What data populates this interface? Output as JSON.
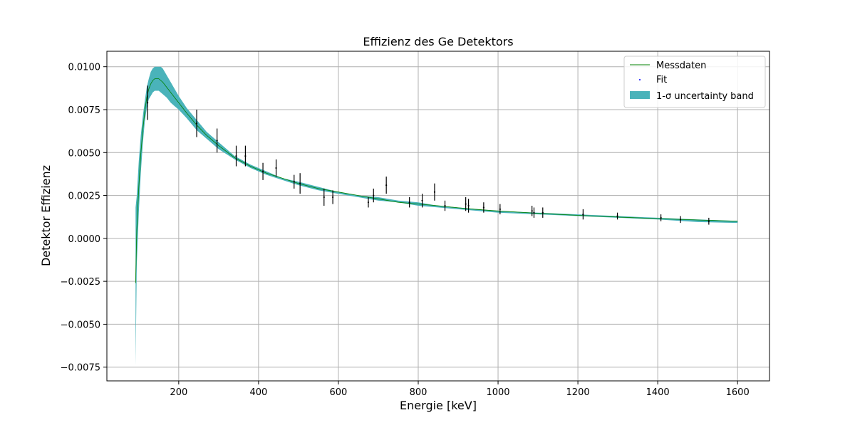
{
  "chart_data": {
    "type": "scatter",
    "title": "Effizienz des Ge Detektors",
    "xlabel": "Energie [keV]",
    "ylabel": "Detektor Effizienz",
    "xlim": [
      20,
      1680
    ],
    "ylim": [
      -0.0083,
      0.0109
    ],
    "x_ticks": [
      200,
      400,
      600,
      800,
      1000,
      1200,
      1400,
      1600
    ],
    "x_tick_labels": [
      "200",
      "400",
      "600",
      "800",
      "1000",
      "1200",
      "1400",
      "1600"
    ],
    "y_ticks": [
      -0.0075,
      -0.005,
      -0.0025,
      0.0,
      0.0025,
      0.005,
      0.0075,
      0.01
    ],
    "y_tick_labels": [
      "−0.0075",
      "−0.0050",
      "−0.0025",
      "0.0000",
      "0.0025",
      "0.0050",
      "0.0075",
      "0.0100"
    ],
    "grid": true,
    "legend_position": "top-right",
    "legend": [
      {
        "label": "Messdaten",
        "kind": "line",
        "color": "#008000"
      },
      {
        "label": "Fit",
        "kind": "marker",
        "color": "#0000ff"
      },
      {
        "label": "1-σ uncertainty band",
        "kind": "patch",
        "color": "#4ab3ba"
      }
    ],
    "colors": {
      "curve": "#008000",
      "band": "#4ab3ba",
      "points": "#000000",
      "grid": "#b0b0b0"
    },
    "curve": {
      "x": [
        92,
        95,
        100,
        105,
        110,
        115,
        120,
        125,
        130,
        135,
        140,
        145,
        150,
        155,
        160,
        170,
        180,
        190,
        200,
        220,
        245,
        270,
        300,
        340,
        380,
        420,
        460,
        500,
        550,
        600,
        650,
        700,
        750,
        800,
        850,
        900,
        950,
        1000,
        1100,
        1200,
        1300,
        1400,
        1500,
        1600
      ],
      "y": [
        -0.0026,
        0.0005,
        0.003,
        0.0049,
        0.0063,
        0.0074,
        0.0082,
        0.0087,
        0.009,
        0.0092,
        0.0093,
        0.0093,
        0.0093,
        0.0092,
        0.0091,
        0.0088,
        0.0085,
        0.0082,
        0.0079,
        0.0073,
        0.0066,
        0.006,
        0.0054,
        0.0047,
        0.0042,
        0.0038,
        0.0035,
        0.0032,
        0.0029,
        0.0027,
        0.0025,
        0.0023,
        0.0021,
        0.002,
        0.0019,
        0.00178,
        0.00168,
        0.0016,
        0.00146,
        0.00134,
        0.00124,
        0.00115,
        0.00107,
        0.001
      ],
      "band_upper": [
        0.0018,
        0.0025,
        0.0045,
        0.006,
        0.0071,
        0.008,
        0.0088,
        0.0093,
        0.0097,
        0.0099,
        0.01,
        0.01,
        0.01,
        0.01,
        0.0099,
        0.0095,
        0.0091,
        0.0087,
        0.0083,
        0.0076,
        0.0069,
        0.0062,
        0.0056,
        0.0048,
        0.0043,
        0.0039,
        0.0035,
        0.0033,
        0.003,
        0.0027,
        0.0025,
        0.0024,
        0.0022,
        0.0021,
        0.0019,
        0.0018,
        0.0017,
        0.0016,
        0.0015,
        0.0014,
        0.0013,
        0.0012,
        0.0011,
        0.00102
      ],
      "band_lower": [
        -0.0074,
        -0.0015,
        0.0015,
        0.0038,
        0.0055,
        0.0068,
        0.0076,
        0.0081,
        0.0083,
        0.0085,
        0.0086,
        0.0086,
        0.0086,
        0.0085,
        0.0084,
        0.0082,
        0.0079,
        0.0077,
        0.0075,
        0.007,
        0.0063,
        0.0058,
        0.0052,
        0.0046,
        0.0041,
        0.0037,
        0.0034,
        0.0031,
        0.0028,
        0.0026,
        0.0024,
        0.0022,
        0.0021,
        0.0019,
        0.0018,
        0.0017,
        0.0016,
        0.0015,
        0.0014,
        0.0013,
        0.0012,
        0.0011,
        0.00095,
        0.0009
      ]
    },
    "points": [
      {
        "x": 122,
        "y": 0.0079,
        "err": 0.001
      },
      {
        "x": 245,
        "y": 0.0067,
        "err": 0.0008
      },
      {
        "x": 296,
        "y": 0.0057,
        "err": 0.0007
      },
      {
        "x": 344,
        "y": 0.0048,
        "err": 0.0006
      },
      {
        "x": 367,
        "y": 0.0048,
        "err": 0.0006
      },
      {
        "x": 411,
        "y": 0.0039,
        "err": 0.0005
      },
      {
        "x": 444,
        "y": 0.0041,
        "err": 0.0005
      },
      {
        "x": 489,
        "y": 0.0033,
        "err": 0.0004
      },
      {
        "x": 504,
        "y": 0.0032,
        "err": 0.0006
      },
      {
        "x": 564,
        "y": 0.0024,
        "err": 0.0005
      },
      {
        "x": 586,
        "y": 0.0024,
        "err": 0.0004
      },
      {
        "x": 675,
        "y": 0.0021,
        "err": 0.0003
      },
      {
        "x": 688,
        "y": 0.0025,
        "err": 0.0004
      },
      {
        "x": 720,
        "y": 0.0031,
        "err": 0.0005
      },
      {
        "x": 778,
        "y": 0.0021,
        "err": 0.0003
      },
      {
        "x": 810,
        "y": 0.0022,
        "err": 0.0004
      },
      {
        "x": 841,
        "y": 0.0027,
        "err": 0.0005
      },
      {
        "x": 867,
        "y": 0.0019,
        "err": 0.0003
      },
      {
        "x": 919,
        "y": 0.002,
        "err": 0.0004
      },
      {
        "x": 926,
        "y": 0.0019,
        "err": 0.0004
      },
      {
        "x": 964,
        "y": 0.0018,
        "err": 0.0003
      },
      {
        "x": 1005,
        "y": 0.0017,
        "err": 0.0003
      },
      {
        "x": 1085,
        "y": 0.0016,
        "err": 0.0003
      },
      {
        "x": 1090,
        "y": 0.0015,
        "err": 0.0003
      },
      {
        "x": 1112,
        "y": 0.0015,
        "err": 0.0003
      },
      {
        "x": 1213,
        "y": 0.0014,
        "err": 0.0003
      },
      {
        "x": 1299,
        "y": 0.0013,
        "err": 0.0002
      },
      {
        "x": 1408,
        "y": 0.0012,
        "err": 0.0002
      },
      {
        "x": 1457,
        "y": 0.0011,
        "err": 0.0002
      },
      {
        "x": 1528,
        "y": 0.001,
        "err": 0.0002
      }
    ]
  }
}
